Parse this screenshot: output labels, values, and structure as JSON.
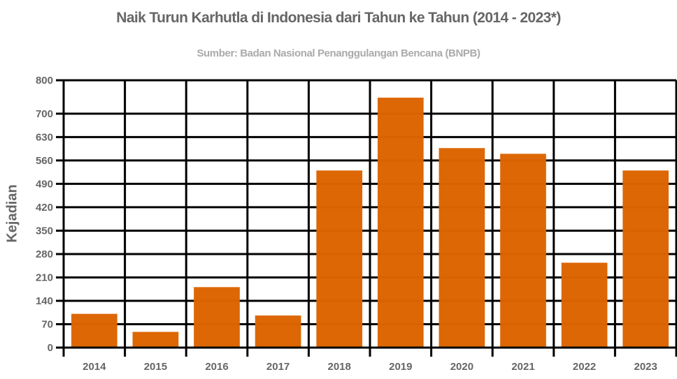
{
  "chart_data": {
    "type": "bar",
    "title": "Naik Turun Karhutla di Indonesia dari Tahun ke Tahun (2014 - 2023*)",
    "subtitle": "Sumber: Badan Nasional Penanggulangan Bencana (BNPB)",
    "xlabel": "",
    "ylabel": "Kejadian",
    "categories": [
      "2014",
      "2015",
      "2016",
      "2017",
      "2018",
      "2019",
      "2020",
      "2021",
      "2022",
      "2023"
    ],
    "values": [
      101,
      47,
      181,
      96,
      530,
      748,
      597,
      580,
      254,
      530
    ],
    "ylim": [
      0,
      800
    ],
    "yticks": [
      0,
      70,
      140,
      210,
      280,
      350,
      420,
      490,
      560,
      630,
      700,
      800
    ],
    "grid": true,
    "legend": null,
    "bar_color": "#DC6400"
  }
}
